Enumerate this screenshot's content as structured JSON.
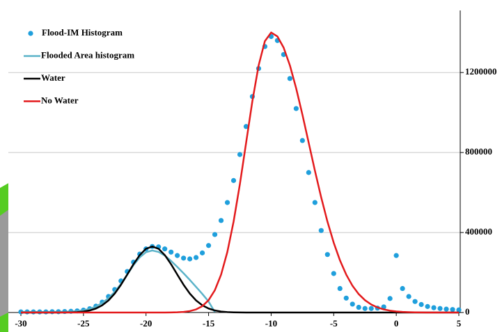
{
  "chart_data": {
    "type": "line",
    "x": [
      -30,
      -29.5,
      -29,
      -28.5,
      -28,
      -27.5,
      -27,
      -26.5,
      -26,
      -25.5,
      -25,
      -24.5,
      -24,
      -23.5,
      -23,
      -22.5,
      -22,
      -21.5,
      -21,
      -20.5,
      -20,
      -19.5,
      -19,
      -18.5,
      -18,
      -17.5,
      -17,
      -16.5,
      -16,
      -15.5,
      -15,
      -14.5,
      -14,
      -13.5,
      -13,
      -12.5,
      -12,
      -11.5,
      -11,
      -10.5,
      -10,
      -9.5,
      -9,
      -8.5,
      -8,
      -7.5,
      -7,
      -6.5,
      -6,
      -5.5,
      -5,
      -4.5,
      -4,
      -3.5,
      -3,
      -2.5,
      -2,
      -1.5,
      -1,
      -0.5,
      0,
      0.5,
      1,
      1.5,
      2,
      2.5,
      3,
      3.5,
      4,
      4.5,
      5
    ],
    "series": [
      {
        "name": "Flood-IM Histogram",
        "color": "#1f9fdc",
        "mode": "markers",
        "values": [
          3000,
          3000,
          3000,
          3000,
          3000,
          4000,
          4000,
          5000,
          6000,
          8000,
          12000,
          19000,
          32000,
          52000,
          80000,
          115000,
          158000,
          205000,
          252000,
          292000,
          318000,
          330000,
          328000,
          318000,
          302000,
          285000,
          272000,
          268000,
          275000,
          298000,
          335000,
          390000,
          460000,
          550000,
          660000,
          790000,
          930000,
          1080000,
          1220000,
          1330000,
          1380000,
          1360000,
          1290000,
          1170000,
          1020000,
          860000,
          700000,
          550000,
          410000,
          290000,
          195000,
          120000,
          72000,
          42000,
          26000,
          20000,
          20000,
          22000,
          28000,
          70000,
          285000,
          120000,
          80000,
          55000,
          40000,
          30000,
          24000,
          20000,
          17000,
          15000,
          13000
        ]
      },
      {
        "name": "Flooded Area histogram",
        "color": "#5bb3c9",
        "mode": "lines",
        "values": [
          3000,
          3000,
          3000,
          3000,
          3000,
          3000,
          3000,
          4000,
          5000,
          7000,
          11000,
          18000,
          30000,
          48000,
          72000,
          103000,
          143000,
          190000,
          237000,
          276000,
          302000,
          310000,
          303000,
          285000,
          258000,
          228000,
          196000,
          163000,
          128000,
          93000,
          55000,
          2000,
          null,
          null,
          null,
          null,
          null,
          null,
          null,
          null,
          null,
          null,
          null,
          null,
          null,
          null,
          null,
          null,
          null,
          null,
          null,
          null,
          null,
          null,
          null,
          null,
          null,
          null,
          null,
          null,
          null,
          null,
          null,
          null,
          null,
          null,
          null,
          null,
          null,
          null,
          null
        ]
      },
      {
        "name": "Water",
        "color": "#000000",
        "mode": "lines",
        "values": [
          0,
          0,
          0,
          0,
          0,
          0,
          100,
          400,
          1000,
          2300,
          5000,
          10300,
          20000,
          36000,
          60500,
          94900,
          138900,
          189700,
          241700,
          287300,
          318800,
          330000,
          318800,
          287300,
          241700,
          189700,
          138900,
          94900,
          60500,
          36000,
          20000,
          10300,
          5000,
          2300,
          1000,
          400,
          100,
          0,
          0,
          0,
          0,
          0,
          0,
          0,
          0,
          0,
          0,
          0,
          0,
          0,
          0,
          0,
          0,
          0,
          0,
          0,
          0,
          0,
          0,
          0,
          0,
          0,
          0,
          0,
          0,
          0,
          0,
          0,
          0,
          0,
          0
        ]
      },
      {
        "name": "No Water",
        "color": "#e31a1c",
        "mode": "lines",
        "values": [
          0,
          0,
          0,
          0,
          0,
          0,
          0,
          0,
          0,
          0,
          0,
          0,
          0,
          0,
          0,
          0,
          0,
          0,
          0,
          0,
          0,
          0,
          0,
          0,
          500,
          1200,
          3100,
          7100,
          15600,
          31900,
          61500,
          111400,
          189500,
          302800,
          454600,
          640900,
          849100,
          1056700,
          1235500,
          1357000,
          1400000,
          1380700,
          1324300,
          1235500,
          1121000,
          989300,
          849100,
          708800,
          575600,
          454600,
          349200,
          260800,
          189500,
          133800,
          92000,
          61500,
          40000,
          25300,
          15600,
          9300,
          5400,
          3100,
          1700,
          900,
          500,
          200,
          100,
          100,
          0,
          0,
          0
        ]
      }
    ],
    "xlim": [
      -30,
      5
    ],
    "xticks": [
      -30,
      -25,
      -20,
      -15,
      -10,
      -5,
      0,
      5
    ],
    "ylim": [
      0,
      1500000
    ],
    "yticks": [
      0,
      400000,
      800000,
      1200000
    ],
    "grid": true,
    "legend": "upper left"
  }
}
